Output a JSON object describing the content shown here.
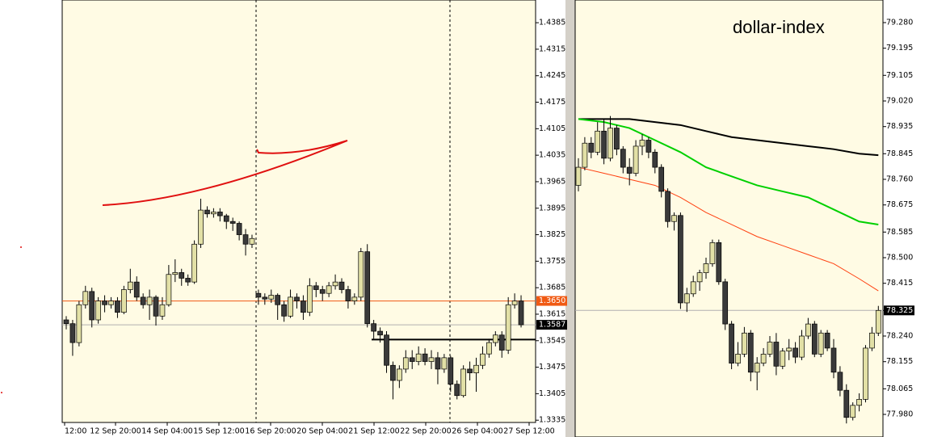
{
  "chart_data": [
    {
      "type": "candlestick",
      "ylim": [
        1.3329,
        1.4445
      ],
      "yticks": [
        1.4385,
        1.4315,
        1.4245,
        1.4175,
        1.4105,
        1.4035,
        1.3965,
        1.3895,
        1.3825,
        1.3755,
        1.3685,
        1.3615,
        1.3545,
        1.3475,
        1.3405,
        1.3335
      ],
      "x_labels": [
        "12:00",
        "12 Sep 20:00",
        "14 Sep 04:00",
        "15 Sep 12:00",
        "16 Sep 20:00",
        "20 Sep 04:00",
        "21 Sep 12:00",
        "22 Sep 20:00",
        "26 Sep 04:00",
        "27 Sep 12:00"
      ],
      "price_lines": [
        {
          "value": 1.365,
          "label": "1.3650",
          "color": "#f05a14"
        },
        {
          "value": 1.3587,
          "label": "1.3587",
          "color": "#000000"
        }
      ],
      "level": 1.3548,
      "candles": [
        [
          1.36,
          1.361,
          1.3575,
          1.359
        ],
        [
          1.359,
          1.36,
          1.3505,
          1.354
        ],
        [
          1.354,
          1.365,
          1.353,
          1.364
        ],
        [
          1.364,
          1.369,
          1.363,
          1.3675
        ],
        [
          1.3675,
          1.3685,
          1.358,
          1.36
        ],
        [
          1.36,
          1.366,
          1.359,
          1.365
        ],
        [
          1.365,
          1.3665,
          1.362,
          1.364
        ],
        [
          1.364,
          1.366,
          1.363,
          1.365
        ],
        [
          1.365,
          1.366,
          1.3605,
          1.362
        ],
        [
          1.362,
          1.369,
          1.3615,
          1.368
        ],
        [
          1.368,
          1.3735,
          1.367,
          1.37
        ],
        [
          1.37,
          1.3715,
          1.365,
          1.366
        ],
        [
          1.366,
          1.367,
          1.363,
          1.364
        ],
        [
          1.364,
          1.368,
          1.36,
          1.366
        ],
        [
          1.366,
          1.3665,
          1.3585,
          1.361
        ],
        [
          1.361,
          1.366,
          1.36,
          1.364
        ],
        [
          1.364,
          1.3745,
          1.3635,
          1.372
        ],
        [
          1.372,
          1.376,
          1.37,
          1.3725
        ],
        [
          1.3725,
          1.3735,
          1.369,
          1.371
        ],
        [
          1.371,
          1.372,
          1.369,
          1.37
        ],
        [
          1.37,
          1.381,
          1.3695,
          1.38
        ],
        [
          1.38,
          1.392,
          1.379,
          1.389
        ],
        [
          1.389,
          1.39,
          1.387,
          1.388
        ],
        [
          1.388,
          1.3895,
          1.387,
          1.3885
        ],
        [
          1.3885,
          1.3895,
          1.386,
          1.3875
        ],
        [
          1.3875,
          1.388,
          1.384,
          1.386
        ],
        [
          1.386,
          1.387,
          1.3835,
          1.3855
        ],
        [
          1.3855,
          1.386,
          1.381,
          1.3825
        ],
        [
          1.3825,
          1.384,
          1.377,
          1.38
        ],
        [
          1.38,
          1.3825,
          1.379,
          1.3815
        ],
        [
          1.367,
          1.368,
          1.364,
          1.366
        ],
        [
          1.366,
          1.367,
          1.364,
          1.3655
        ],
        [
          1.3655,
          1.368,
          1.3645,
          1.3665
        ],
        [
          1.3665,
          1.367,
          1.36,
          1.364
        ],
        [
          1.364,
          1.365,
          1.3595,
          1.361
        ],
        [
          1.361,
          1.368,
          1.3605,
          1.366
        ],
        [
          1.366,
          1.367,
          1.363,
          1.365
        ],
        [
          1.365,
          1.3665,
          1.36,
          1.362
        ],
        [
          1.362,
          1.371,
          1.361,
          1.369
        ],
        [
          1.369,
          1.37,
          1.366,
          1.368
        ],
        [
          1.368,
          1.369,
          1.365,
          1.367
        ],
        [
          1.367,
          1.37,
          1.366,
          1.369
        ],
        [
          1.369,
          1.372,
          1.368,
          1.37
        ],
        [
          1.37,
          1.371,
          1.367,
          1.368
        ],
        [
          1.368,
          1.369,
          1.363,
          1.365
        ],
        [
          1.365,
          1.367,
          1.364,
          1.366
        ],
        [
          1.366,
          1.379,
          1.365,
          1.378
        ],
        [
          1.378,
          1.38,
          1.358,
          1.359
        ],
        [
          1.359,
          1.36,
          1.355,
          1.357
        ],
        [
          1.357,
          1.358,
          1.354,
          1.356
        ],
        [
          1.356,
          1.357,
          1.346,
          1.348
        ],
        [
          1.348,
          1.349,
          1.339,
          1.344
        ],
        [
          1.344,
          1.348,
          1.342,
          1.347
        ],
        [
          1.347,
          1.352,
          1.346,
          1.35
        ],
        [
          1.35,
          1.352,
          1.347,
          1.349
        ],
        [
          1.349,
          1.353,
          1.348,
          1.351
        ],
        [
          1.351,
          1.3525,
          1.348,
          1.349
        ],
        [
          1.349,
          1.352,
          1.347,
          1.35
        ],
        [
          1.35,
          1.3515,
          1.343,
          1.347
        ],
        [
          1.347,
          1.351,
          1.346,
          1.35
        ],
        [
          1.35,
          1.3505,
          1.341,
          1.343
        ],
        [
          1.343,
          1.344,
          1.339,
          1.34
        ],
        [
          1.34,
          1.348,
          1.3395,
          1.347
        ],
        [
          1.347,
          1.349,
          1.344,
          1.346
        ],
        [
          1.346,
          1.35,
          1.341,
          1.348
        ],
        [
          1.348,
          1.353,
          1.347,
          1.351
        ],
        [
          1.351,
          1.355,
          1.35,
          1.354
        ],
        [
          1.354,
          1.357,
          1.353,
          1.356
        ],
        [
          1.356,
          1.357,
          1.35,
          1.352
        ],
        [
          1.352,
          1.366,
          1.351,
          1.364
        ],
        [
          1.364,
          1.367,
          1.363,
          1.365
        ],
        [
          1.365,
          1.3665,
          1.358,
          1.3587
        ]
      ]
    },
    {
      "type": "candlestick",
      "title": "dollar-index",
      "ylim": [
        77.905,
        79.355
      ],
      "yticks": [
        {
          "value": 79.28,
          "label": "79.280"
        },
        {
          "value": 79.195,
          "label": "79.195"
        },
        {
          "value": 79.105,
          "label": "79.105"
        },
        {
          "value": 79.02,
          "label": "79.020"
        },
        {
          "value": 78.935,
          "label": "78.935"
        },
        {
          "value": 78.845,
          "label": "78.845"
        },
        {
          "value": 78.76,
          "label": "78.760"
        },
        {
          "value": 78.675,
          "label": "78.675"
        },
        {
          "value": 78.585,
          "label": "78.585"
        },
        {
          "value": 78.5,
          "label": "78.500"
        },
        {
          "value": 78.415,
          "label": "78.415"
        },
        {
          "value": 78.325,
          "label": "78.325"
        },
        {
          "value": 78.24,
          "label": "78.240"
        },
        {
          "value": 78.155,
          "label": "78.155"
        },
        {
          "value": 78.065,
          "label": "78.065"
        },
        {
          "value": 77.98,
          "label": "77.980"
        }
      ],
      "price_lines": [
        {
          "value": 78.325,
          "label": "78.325",
          "color": "#000000"
        }
      ],
      "candles": [
        [
          78.74,
          78.83,
          78.72,
          78.8
        ],
        [
          78.8,
          78.9,
          78.79,
          78.88
        ],
        [
          78.88,
          78.9,
          78.83,
          78.85
        ],
        [
          78.85,
          78.95,
          78.84,
          78.92
        ],
        [
          78.92,
          78.96,
          78.81,
          78.83
        ],
        [
          78.83,
          78.97,
          78.82,
          78.93
        ],
        [
          78.93,
          78.94,
          78.84,
          78.86
        ],
        [
          78.86,
          78.87,
          78.78,
          78.8
        ],
        [
          78.8,
          78.83,
          78.74,
          78.78
        ],
        [
          78.78,
          78.89,
          78.77,
          78.87
        ],
        [
          78.87,
          78.91,
          78.84,
          78.89
        ],
        [
          78.89,
          78.9,
          78.83,
          78.85
        ],
        [
          78.85,
          78.86,
          78.78,
          78.8
        ],
        [
          78.8,
          78.81,
          78.7,
          78.72
        ],
        [
          78.72,
          78.73,
          78.6,
          78.62
        ],
        [
          78.62,
          78.65,
          78.59,
          78.64
        ],
        [
          78.64,
          78.65,
          78.33,
          78.35
        ],
        [
          78.35,
          78.4,
          78.32,
          78.38
        ],
        [
          78.38,
          78.44,
          78.37,
          78.42
        ],
        [
          78.42,
          78.46,
          78.39,
          78.45
        ],
        [
          78.45,
          78.5,
          78.43,
          78.48
        ],
        [
          78.48,
          78.56,
          78.47,
          78.55
        ],
        [
          78.55,
          78.56,
          78.41,
          78.42
        ],
        [
          78.42,
          78.43,
          78.26,
          78.28
        ],
        [
          78.28,
          78.29,
          78.13,
          78.15
        ],
        [
          78.15,
          78.22,
          78.14,
          78.18
        ],
        [
          78.18,
          78.27,
          78.17,
          78.25
        ],
        [
          78.25,
          78.26,
          78.09,
          78.12
        ],
        [
          78.12,
          78.17,
          78.06,
          78.15
        ],
        [
          78.15,
          78.2,
          78.14,
          78.18
        ],
        [
          78.18,
          78.24,
          78.17,
          78.22
        ],
        [
          78.22,
          78.25,
          78.11,
          78.14
        ],
        [
          78.14,
          78.2,
          78.13,
          78.19
        ],
        [
          78.19,
          78.23,
          78.16,
          78.2
        ],
        [
          78.2,
          78.22,
          78.15,
          78.17
        ],
        [
          78.17,
          78.26,
          78.16,
          78.24
        ],
        [
          78.24,
          78.3,
          78.23,
          78.28
        ],
        [
          78.28,
          78.29,
          78.17,
          78.18
        ],
        [
          78.18,
          78.26,
          78.17,
          78.25
        ],
        [
          78.25,
          78.26,
          78.19,
          78.2
        ],
        [
          78.2,
          78.23,
          78.1,
          78.12
        ],
        [
          78.12,
          78.14,
          78.04,
          78.06
        ],
        [
          78.06,
          78.08,
          77.95,
          77.97
        ],
        [
          77.97,
          78.02,
          77.96,
          78.01
        ],
        [
          78.01,
          78.05,
          77.99,
          78.03
        ],
        [
          78.03,
          78.21,
          78.02,
          78.2
        ],
        [
          78.2,
          78.27,
          78.19,
          78.25
        ],
        [
          78.25,
          78.34,
          78.24,
          78.325
        ]
      ],
      "moving_averages": [
        {
          "color": "#000000",
          "x": [
            0,
            4,
            8,
            12,
            16,
            20,
            24,
            28,
            32,
            36,
            40,
            44,
            47
          ],
          "values": [
            78.96,
            78.96,
            78.96,
            78.95,
            78.94,
            78.92,
            78.9,
            78.89,
            78.88,
            78.87,
            78.86,
            78.845,
            78.84
          ]
        },
        {
          "color": "#00d000",
          "x": [
            0,
            4,
            8,
            12,
            16,
            20,
            24,
            28,
            32,
            36,
            40,
            44,
            47
          ],
          "values": [
            78.96,
            78.95,
            78.93,
            78.89,
            78.85,
            78.8,
            78.77,
            78.74,
            78.72,
            78.7,
            78.66,
            78.62,
            78.61
          ]
        },
        {
          "color": "#ff4010",
          "x": [
            0,
            4,
            8,
            12,
            16,
            20,
            24,
            28,
            32,
            36,
            40,
            44,
            47
          ],
          "values": [
            78.8,
            78.78,
            78.76,
            78.74,
            78.7,
            78.65,
            78.61,
            78.57,
            78.54,
            78.51,
            78.48,
            78.43,
            78.39
          ]
        }
      ]
    }
  ]
}
